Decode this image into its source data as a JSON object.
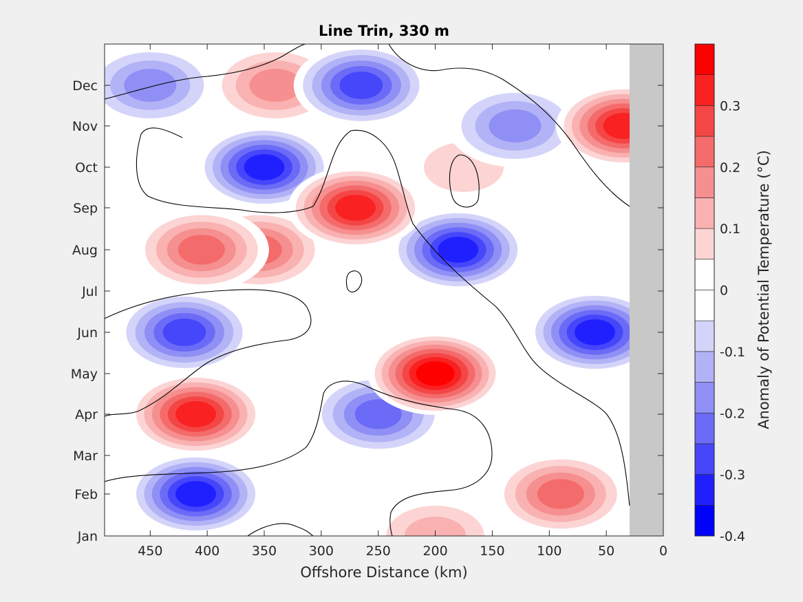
{
  "chart_data": {
    "type": "heatmap",
    "title": "Line Trin, 330 m",
    "xlabel": "Offshore Distance (km)",
    "ylabel": "",
    "colorbar_label": "Anomaly of Potential Temperature (°C)",
    "x_axis": {
      "range": [
        0,
        490
      ],
      "reversed": true,
      "ticks": [
        450,
        400,
        350,
        300,
        250,
        200,
        150,
        100,
        50,
        0
      ],
      "tick_labels": [
        "450",
        "400",
        "350",
        "300",
        "250",
        "200",
        "150",
        "100",
        "50",
        "0"
      ]
    },
    "y_axis": {
      "tick_labels": [
        "Jan",
        "Feb",
        "Mar",
        "Apr",
        "May",
        "Jun",
        "Jul",
        "Aug",
        "Sep",
        "Oct",
        "Nov",
        "Dec"
      ]
    },
    "colorbar": {
      "range": [
        -0.4,
        0.4
      ],
      "levels": [
        -0.4,
        -0.35,
        -0.3,
        -0.25,
        -0.2,
        -0.15,
        -0.1,
        -0.05,
        0,
        0.05,
        0.1,
        0.15,
        0.2,
        0.25,
        0.3,
        0.35,
        0.4
      ],
      "tick_values": [
        -0.4,
        -0.3,
        -0.2,
        -0.1,
        0,
        0.1,
        0.2,
        0.3
      ],
      "tick_labels": [
        "-0.4",
        "-0.3",
        "-0.2",
        "-0.1",
        "0",
        "0.1",
        "0.2",
        "0.3"
      ],
      "colors": [
        "#0000ff",
        "#2020ff",
        "#4646fa",
        "#6b6bf7",
        "#8f8ff5",
        "#b2b2f6",
        "#d4d4fa",
        "#ffffff",
        "#ffffff",
        "#fcd4d4",
        "#f9b1b1",
        "#f68f8f",
        "#f46b6b",
        "#f54646",
        "#f92121",
        "#ff0000"
      ]
    },
    "land_mask": {
      "x_range_km": [
        0,
        30
      ],
      "color": "#c8c8c8"
    },
    "features": [
      {
        "x": 410,
        "y": "Apr",
        "value": 0.33
      },
      {
        "x": 405,
        "y": "Aug",
        "value": 0.25
      },
      {
        "x": 355,
        "y": "Aug",
        "value": 0.24
      },
      {
        "x": 270,
        "y": "Sep",
        "value": 0.37
      },
      {
        "x": 200,
        "y": "May",
        "value": 0.38
      },
      {
        "x": 90,
        "y": "Feb",
        "value": 0.26
      },
      {
        "x": 35,
        "y": "Nov",
        "value": 0.33
      },
      {
        "x": 340,
        "y": "Dec",
        "value": 0.2
      },
      {
        "x": 175,
        "y": "Oct",
        "value": 0.1
      },
      {
        "x": 200,
        "y": "Jan",
        "value": 0.15
      },
      {
        "x": 350,
        "y": "Oct",
        "value": -0.36
      },
      {
        "x": 420,
        "y": "Jun",
        "value": -0.3
      },
      {
        "x": 410,
        "y": "Feb",
        "value": -0.33
      },
      {
        "x": 180,
        "y": "Aug",
        "value": -0.34
      },
      {
        "x": 60,
        "y": "Jun",
        "value": -0.36
      },
      {
        "x": 265,
        "y": "Dec",
        "value": -0.3
      },
      {
        "x": 250,
        "y": "Apr",
        "value": -0.24
      },
      {
        "x": 130,
        "y": "Nov",
        "value": -0.2
      },
      {
        "x": 450,
        "y": "Dec",
        "value": -0.2
      }
    ]
  }
}
